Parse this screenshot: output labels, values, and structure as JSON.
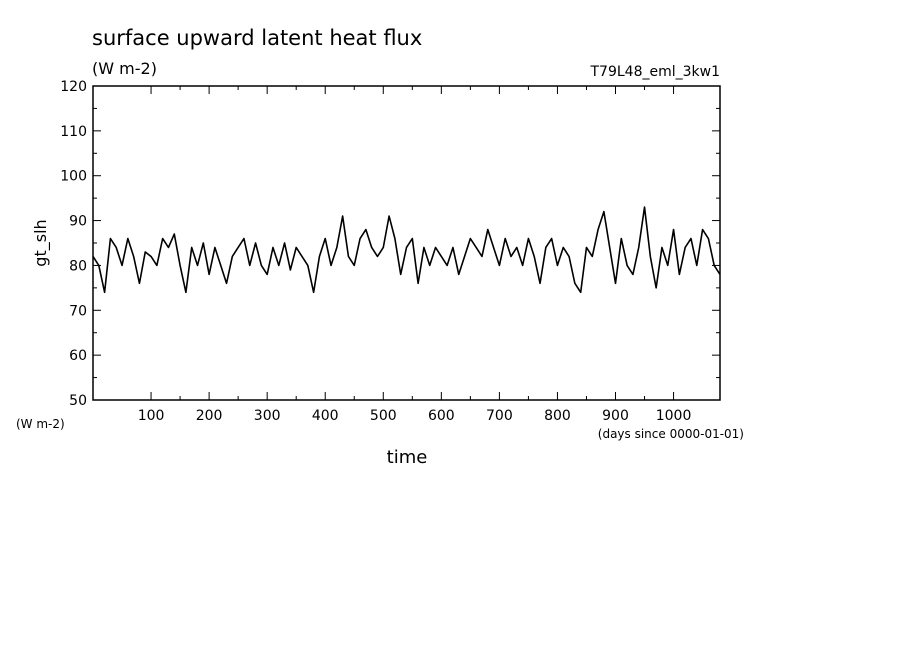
{
  "chart_data": {
    "type": "line",
    "title": "surface upward latent heat flux",
    "subtitle": "(W m-2)",
    "annotation": "T79L48_eml_3kw1",
    "y_label": "gt_slh",
    "y_unit": "(W m-2)",
    "x_label": "time",
    "x_unit": "(days since 0000-01-01)",
    "xlim": [
      0,
      1080
    ],
    "xticks": [
      100,
      200,
      300,
      400,
      500,
      600,
      700,
      800,
      900,
      1000
    ],
    "ylim": [
      50,
      120
    ],
    "yticks": [
      50,
      60,
      70,
      80,
      90,
      100,
      110,
      120
    ],
    "grid": false,
    "series": [
      {
        "name": "gt_slh",
        "color": "#000000",
        "x": [
          0,
          10,
          20,
          30,
          40,
          50,
          60,
          70,
          80,
          90,
          100,
          110,
          120,
          130,
          140,
          150,
          160,
          170,
          180,
          190,
          200,
          210,
          220,
          230,
          240,
          250,
          260,
          270,
          280,
          290,
          300,
          310,
          320,
          330,
          340,
          350,
          360,
          370,
          380,
          390,
          400,
          410,
          420,
          430,
          440,
          450,
          460,
          470,
          480,
          490,
          500,
          510,
          520,
          530,
          540,
          550,
          560,
          570,
          580,
          590,
          600,
          610,
          620,
          630,
          640,
          650,
          660,
          670,
          680,
          690,
          700,
          710,
          720,
          730,
          740,
          750,
          760,
          770,
          780,
          790,
          800,
          810,
          820,
          830,
          840,
          850,
          860,
          870,
          880,
          890,
          900,
          910,
          920,
          930,
          940,
          950,
          960,
          970,
          980,
          990,
          1000,
          1010,
          1020,
          1030,
          1040,
          1050,
          1060,
          1070,
          1080
        ],
        "values": [
          82,
          80,
          74,
          86,
          84,
          80,
          86,
          82,
          76,
          83,
          82,
          80,
          86,
          84,
          87,
          80,
          74,
          84,
          80,
          85,
          78,
          84,
          80,
          76,
          82,
          84,
          86,
          80,
          85,
          80,
          78,
          84,
          80,
          85,
          79,
          84,
          82,
          80,
          74,
          82,
          86,
          80,
          84,
          91,
          82,
          80,
          86,
          88,
          84,
          82,
          84,
          91,
          86,
          78,
          84,
          86,
          76,
          84,
          80,
          84,
          82,
          80,
          84,
          78,
          82,
          86,
          84,
          82,
          88,
          84,
          80,
          86,
          82,
          84,
          80,
          86,
          82,
          76,
          84,
          86,
          80,
          84,
          82,
          76,
          74,
          84,
          82,
          88,
          92,
          84,
          76,
          86,
          80,
          78,
          84,
          93,
          82,
          75,
          84,
          80,
          88,
          78,
          84,
          86,
          80,
          88,
          86,
          80,
          78
        ]
      }
    ]
  }
}
